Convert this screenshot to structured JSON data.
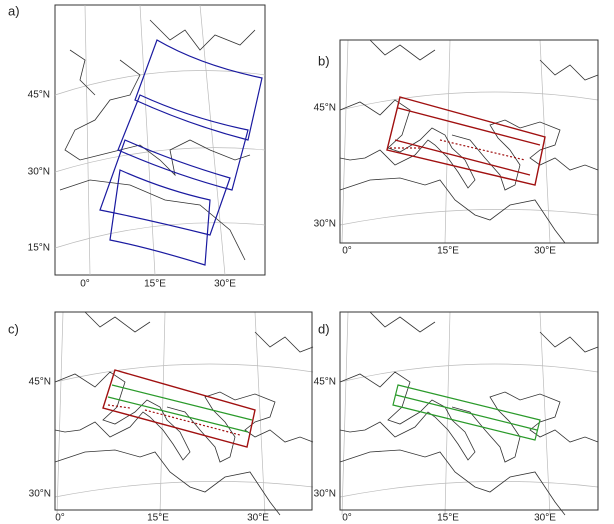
{
  "panels": [
    {
      "label": "a)",
      "lat_labels": [
        "45°N",
        "30°N",
        "15°N"
      ],
      "lon_labels": [
        "0°",
        "15°E",
        "30°E"
      ]
    },
    {
      "label": "b)",
      "lat_labels": [
        "45°N",
        "30°N"
      ],
      "lon_labels": [
        "0°",
        "15°E",
        "30°E"
      ]
    },
    {
      "label": "c)",
      "lat_labels": [
        "45°N",
        "30°N"
      ],
      "lon_labels": [
        "0°",
        "15°E",
        "30°E"
      ]
    },
    {
      "label": "d)",
      "lat_labels": [
        "45°N",
        "30°N"
      ],
      "lon_labels": [
        "0°",
        "15°E",
        "30°E"
      ]
    }
  ]
}
